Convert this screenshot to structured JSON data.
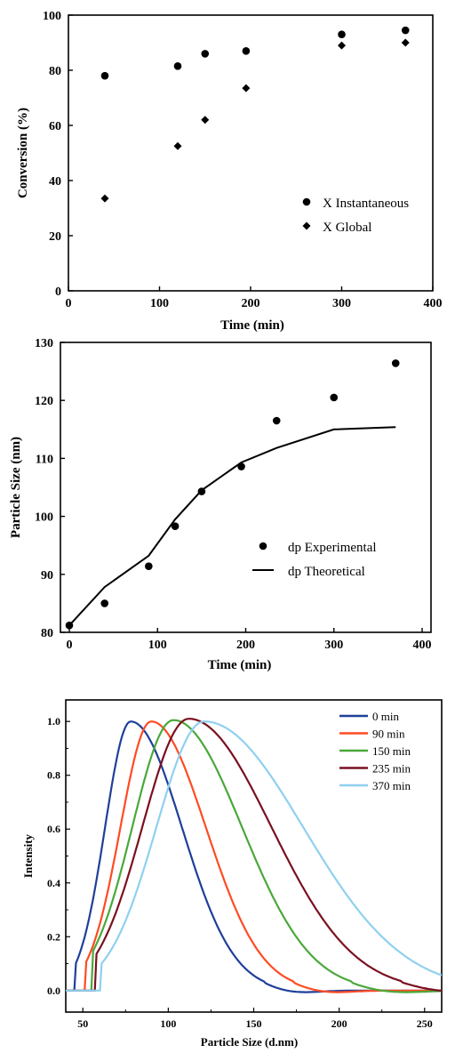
{
  "chart_data": [
    {
      "type": "scatter",
      "title": "",
      "xlabel": "Time (min)",
      "ylabel": "Conversion (%)",
      "xlim": [
        0,
        400
      ],
      "ylim": [
        0,
        100
      ],
      "xticks": [
        0,
        100,
        200,
        300,
        400
      ],
      "yticks": [
        0,
        20,
        40,
        60,
        80,
        100
      ],
      "legend_position": "bottom-right",
      "series": [
        {
          "name": "X Instantaneous",
          "marker": "circle",
          "x": [
            40,
            120,
            150,
            195,
            300,
            370
          ],
          "y": [
            78,
            81.5,
            86,
            87,
            93,
            94.5
          ]
        },
        {
          "name": "X Global",
          "marker": "diamond",
          "x": [
            40,
            120,
            150,
            195,
            300,
            370
          ],
          "y": [
            33.5,
            52.5,
            62,
            73.5,
            89,
            90
          ]
        }
      ]
    },
    {
      "type": "line",
      "title": "",
      "xlabel": "Time (min)",
      "ylabel": "Particle Size (nm)",
      "xlim": [
        0,
        400
      ],
      "ylim": [
        80,
        130
      ],
      "xticks": [
        0,
        100,
        200,
        300,
        400
      ],
      "yticks": [
        80,
        90,
        100,
        110,
        120,
        130
      ],
      "legend_position": "bottom-right",
      "series": [
        {
          "name": "dp Experimental",
          "marker": "circle",
          "x": [
            0,
            40,
            90,
            120,
            150,
            195,
            235,
            300,
            370
          ],
          "y": [
            81.2,
            85,
            91.4,
            98.3,
            104.3,
            108.6,
            116.5,
            120.5,
            126.4
          ]
        },
        {
          "name": "dp Theoretical",
          "marker": "line",
          "x": [
            0,
            40,
            90,
            120,
            150,
            195,
            235,
            300,
            370
          ],
          "y": [
            81.2,
            87.8,
            93.2,
            99.5,
            104.5,
            109.3,
            111.8,
            115,
            115.4
          ]
        }
      ]
    },
    {
      "type": "line",
      "title": "",
      "xlabel": "Particle Size (d.nm)",
      "ylabel": "Intensity",
      "xlim": [
        40,
        260
      ],
      "ylim": [
        -0.08,
        1.08
      ],
      "xticks": [
        50,
        100,
        150,
        200,
        250
      ],
      "yticks": [
        0.0,
        0.2,
        0.4,
        0.6,
        0.8,
        1.0
      ],
      "ytick_labels": [
        "0.0",
        "0.2",
        "0.4",
        "0.6",
        "0.8",
        "1.0"
      ],
      "legend_position": "top-right",
      "series": [
        {
          "name": "0 min",
          "color": "#1f3f99",
          "start": 45,
          "peak_x": 78,
          "peak_y": 1.0,
          "sigma_left": 15,
          "sigma_right": 30
        },
        {
          "name": "90 min",
          "color": "#ff4b23",
          "start": 51,
          "peak_x": 90,
          "peak_y": 1.0,
          "sigma_left": 18,
          "sigma_right": 32
        },
        {
          "name": "150 min",
          "color": "#4aa83a",
          "start": 55,
          "peak_x": 103,
          "peak_y": 1.005,
          "sigma_left": 24,
          "sigma_right": 40
        },
        {
          "name": "235 min",
          "color": "#7a1020",
          "start": 57,
          "peak_x": 112,
          "peak_y": 1.01,
          "sigma_left": 27,
          "sigma_right": 48
        },
        {
          "name": "370 min",
          "color": "#8fd0f0",
          "start": 60,
          "peak_x": 121,
          "peak_y": 1.0,
          "sigma_left": 28,
          "sigma_right": 58
        }
      ]
    }
  ]
}
